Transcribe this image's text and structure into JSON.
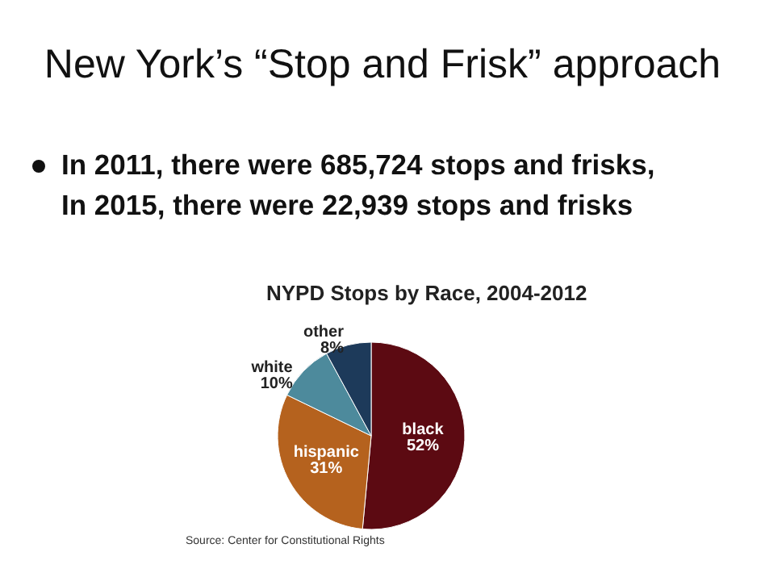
{
  "chart_data": {
    "type": "pie",
    "title": "New York’s “Stop and Frisk” approach",
    "subtitle": "NYPD Stops by Race, 2004-2012",
    "categories": [
      "black",
      "hispanic",
      "white",
      "other"
    ],
    "values": [
      52,
      31,
      10,
      8
    ],
    "value_labels": [
      "52%",
      "31%",
      "10%",
      "8%"
    ],
    "colors": [
      "#5c0a12",
      "#b5621e",
      "#4d8a9c",
      "#1d3a5a"
    ],
    "data_labels": true,
    "annotations": [
      "In 2011, there were 685,724 stops and frisks,",
      "In 2015, there were 22,939 stops and frisks",
      "Source: Center for Constitutional Rights"
    ]
  }
}
